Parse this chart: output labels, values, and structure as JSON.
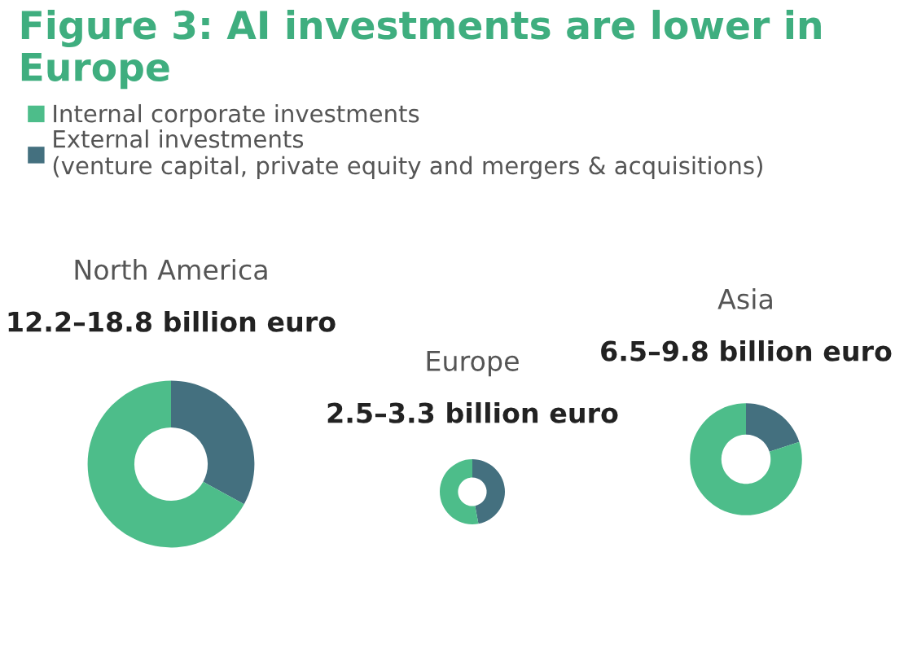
{
  "chart_data": [
    {
      "type": "other",
      "title": "Figure 3: AI investments are lower in Europe"
    },
    {
      "type": "donut",
      "title": "North America",
      "subtitle": "12.2–18.8 billion euro",
      "categories": [
        "Internal corporate investments",
        "External investments\n(venture capital, private equity and mergers & acquisitions)"
      ],
      "values": [
        67,
        33
      ],
      "colors": [
        "#4dbd8a",
        "#44707f"
      ],
      "legend": "top"
    },
    {
      "type": "donut",
      "title": "Europe",
      "subtitle": "2.5–3.3 billion euro",
      "categories": [
        null,
        null
      ],
      "values": [
        53,
        47
      ],
      "colors": [
        "#4dbd8a",
        "#44707f"
      ]
    },
    {
      "type": "donut",
      "title": "Asia",
      "subtitle": "6.5–9.8 billion euro",
      "categories": [
        null,
        null
      ],
      "values": [
        80,
        20
      ],
      "colors": [
        "#4dbd8a",
        "#44707f"
      ]
    }
  ]
}
